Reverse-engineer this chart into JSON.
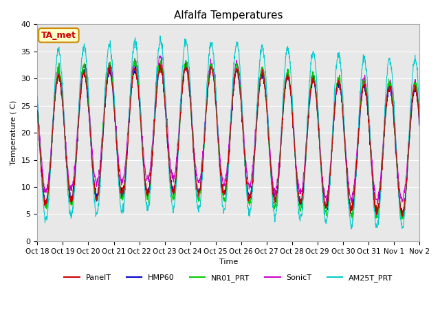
{
  "title": "Alfalfa Temperatures",
  "xlabel": "Time",
  "ylabel": "Temperature ( C)",
  "xlim_days": 15,
  "ylim": [
    0,
    40
  ],
  "yticks": [
    0,
    5,
    10,
    15,
    20,
    25,
    30,
    35,
    40
  ],
  "plot_bg": "#e8e8e8",
  "annotation_text": "TA_met",
  "annotation_bg": "#ffffcc",
  "annotation_edge": "#cc8800",
  "annotation_text_color": "#cc0000",
  "series_colors": {
    "PanelT": "#cc0000",
    "HMP60": "#0000cc",
    "NR01_PRT": "#00cc00",
    "SonicT": "#cc00cc",
    "AM25T_PRT": "#00cccc"
  },
  "tick_labels": [
    "Oct 18",
    "Oct 19",
    "Oct 20",
    "Oct 21",
    "Oct 22",
    "Oct 23",
    "Oct 24",
    "Oct 25",
    "Oct 26",
    "Oct 27",
    "Oct 28",
    "Oct 29",
    "Oct 30",
    "Oct 31",
    "Nov 1",
    "Nov 2"
  ],
  "n_points": 1500,
  "seed": 42,
  "daily_min": 7,
  "daily_max_base": 30,
  "am25t_boost": 5
}
